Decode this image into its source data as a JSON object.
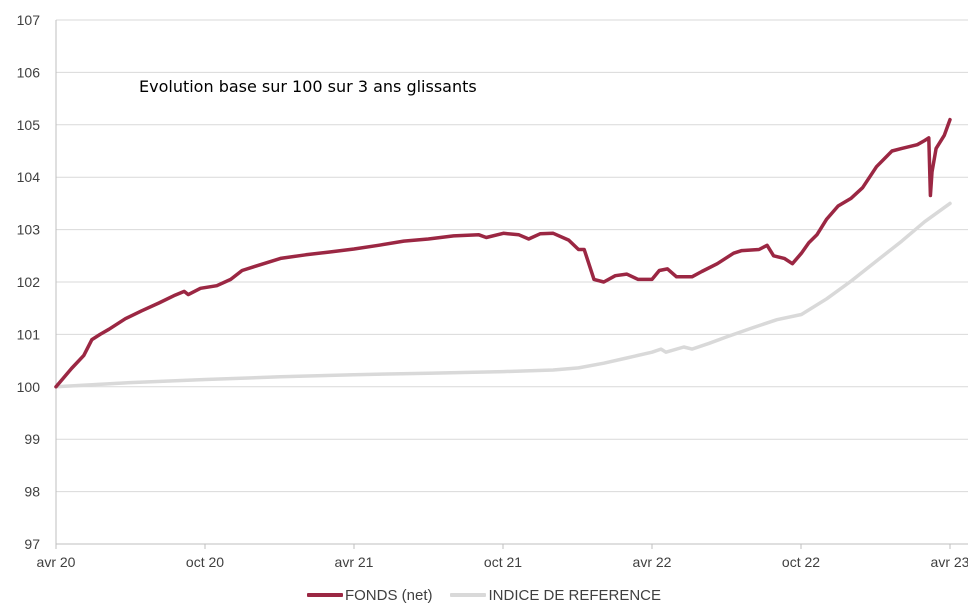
{
  "chart_data": {
    "type": "line",
    "annotation": "Evolution base sur 100 sur 3 ans glissants",
    "x_start": "2020-04",
    "x_end": "2023-04",
    "x_ticks": [
      "avr 20",
      "oct 20",
      "avr 21",
      "oct 21",
      "avr 22",
      "oct 22",
      "avr 23"
    ],
    "ylim": [
      97,
      107
    ],
    "y_ticks": [
      "97",
      "98",
      "99",
      "100",
      "101",
      "102",
      "103",
      "104",
      "105",
      "106",
      "107"
    ],
    "grid": "horizontal",
    "legend_position": "bottom",
    "series": [
      {
        "name": "FONDS (net)",
        "color": "#9b2743",
        "points": [
          [
            "2020-04-01",
            100.0
          ],
          [
            "2020-04-20",
            100.35
          ],
          [
            "2020-05-05",
            100.6
          ],
          [
            "2020-05-15",
            100.9
          ],
          [
            "2020-05-25",
            101.0
          ],
          [
            "2020-06-05",
            101.1
          ],
          [
            "2020-06-25",
            101.3
          ],
          [
            "2020-07-15",
            101.45
          ],
          [
            "2020-08-05",
            101.6
          ],
          [
            "2020-08-25",
            101.75
          ],
          [
            "2020-09-05",
            101.82
          ],
          [
            "2020-09-10",
            101.76
          ],
          [
            "2020-09-25",
            101.88
          ],
          [
            "2020-10-15",
            101.93
          ],
          [
            "2020-11-01",
            102.05
          ],
          [
            "2020-11-15",
            102.22
          ],
          [
            "2020-12-01",
            102.3
          ],
          [
            "2021-01-01",
            102.45
          ],
          [
            "2021-02-01",
            102.52
          ],
          [
            "2021-03-01",
            102.57
          ],
          [
            "2021-04-01",
            102.63
          ],
          [
            "2021-05-01",
            102.7
          ],
          [
            "2021-06-01",
            102.78
          ],
          [
            "2021-07-01",
            102.82
          ],
          [
            "2021-08-01",
            102.88
          ],
          [
            "2021-09-01",
            102.9
          ],
          [
            "2021-09-10",
            102.85
          ],
          [
            "2021-10-01",
            102.93
          ],
          [
            "2021-10-20",
            102.9
          ],
          [
            "2021-11-01",
            102.82
          ],
          [
            "2021-11-15",
            102.92
          ],
          [
            "2021-12-01",
            102.93
          ],
          [
            "2021-12-20",
            102.8
          ],
          [
            "2022-01-01",
            102.62
          ],
          [
            "2022-01-08",
            102.62
          ],
          [
            "2022-01-20",
            102.05
          ],
          [
            "2022-02-01",
            102.0
          ],
          [
            "2022-02-15",
            102.12
          ],
          [
            "2022-03-01",
            102.15
          ],
          [
            "2022-03-15",
            102.05
          ],
          [
            "2022-04-01",
            102.05
          ],
          [
            "2022-04-10",
            102.22
          ],
          [
            "2022-04-20",
            102.25
          ],
          [
            "2022-05-01",
            102.1
          ],
          [
            "2022-05-20",
            102.1
          ],
          [
            "2022-06-01",
            102.2
          ],
          [
            "2022-06-20",
            102.35
          ],
          [
            "2022-07-10",
            102.55
          ],
          [
            "2022-07-20",
            102.6
          ],
          [
            "2022-08-10",
            102.62
          ],
          [
            "2022-08-20",
            102.7
          ],
          [
            "2022-08-28",
            102.5
          ],
          [
            "2022-09-10",
            102.45
          ],
          [
            "2022-09-20",
            102.35
          ],
          [
            "2022-10-01",
            102.55
          ],
          [
            "2022-10-10",
            102.75
          ],
          [
            "2022-10-20",
            102.9
          ],
          [
            "2022-11-01",
            103.2
          ],
          [
            "2022-11-15",
            103.45
          ],
          [
            "2022-12-01",
            103.6
          ],
          [
            "2022-12-15",
            103.8
          ],
          [
            "2023-01-01",
            104.2
          ],
          [
            "2023-01-20",
            104.5
          ],
          [
            "2023-02-01",
            104.55
          ],
          [
            "2023-02-20",
            104.62
          ],
          [
            "2023-03-01",
            104.7
          ],
          [
            "2023-03-06",
            104.75
          ],
          [
            "2023-03-08",
            103.65
          ],
          [
            "2023-03-10",
            104.1
          ],
          [
            "2023-03-15",
            104.55
          ],
          [
            "2023-03-25",
            104.8
          ],
          [
            "2023-04-01",
            105.1
          ]
        ]
      },
      {
        "name": "INDICE DE REFERENCE",
        "color": "#d9d9d9",
        "points": [
          [
            "2020-04-01",
            100.0
          ],
          [
            "2020-07-01",
            100.08
          ],
          [
            "2020-10-01",
            100.14
          ],
          [
            "2021-01-01",
            100.19
          ],
          [
            "2021-04-01",
            100.23
          ],
          [
            "2021-07-01",
            100.26
          ],
          [
            "2021-10-01",
            100.29
          ],
          [
            "2021-12-01",
            100.32
          ],
          [
            "2022-01-01",
            100.36
          ],
          [
            "2022-02-01",
            100.45
          ],
          [
            "2022-03-01",
            100.55
          ],
          [
            "2022-04-01",
            100.66
          ],
          [
            "2022-04-12",
            100.72
          ],
          [
            "2022-04-18",
            100.66
          ],
          [
            "2022-05-10",
            100.76
          ],
          [
            "2022-05-20",
            100.72
          ],
          [
            "2022-06-10",
            100.83
          ],
          [
            "2022-07-01",
            100.95
          ],
          [
            "2022-08-01",
            101.12
          ],
          [
            "2022-09-01",
            101.28
          ],
          [
            "2022-10-01",
            101.38
          ],
          [
            "2022-11-01",
            101.68
          ],
          [
            "2022-12-01",
            102.02
          ],
          [
            "2023-01-01",
            102.4
          ],
          [
            "2023-02-01",
            102.78
          ],
          [
            "2023-03-01",
            103.15
          ],
          [
            "2023-04-01",
            103.5
          ]
        ]
      }
    ]
  }
}
